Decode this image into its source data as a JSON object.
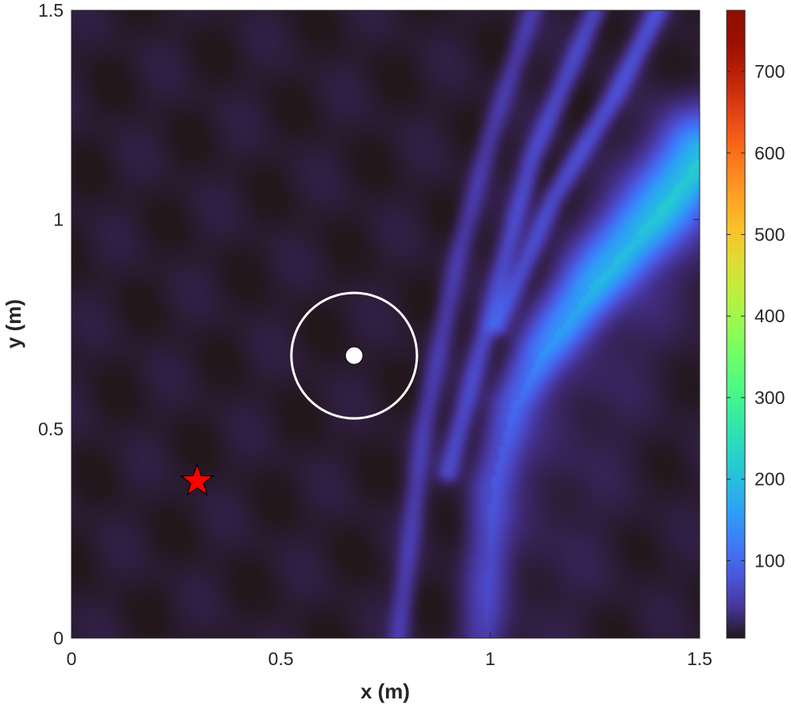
{
  "chart_data": {
    "type": "heatmap",
    "title": "",
    "xlabel": "x (m)",
    "ylabel": "y (m)",
    "xlim": [
      0,
      1.5
    ],
    "ylim": [
      0,
      1.5
    ],
    "x_ticks": [
      0,
      0.5,
      1,
      1.5
    ],
    "x_tick_labels": [
      "0",
      "0.5",
      "1",
      "1.5"
    ],
    "y_ticks": [
      0,
      0.5,
      1,
      1.5
    ],
    "y_tick_labels": [
      "0",
      "0.5",
      "1",
      "1.5"
    ],
    "grid": false,
    "colormap": "turbo",
    "colorbar": {
      "range": [
        5,
        775
      ],
      "ticks": [
        100,
        200,
        300,
        400,
        500,
        600,
        700
      ],
      "tick_labels": [
        "100",
        "200",
        "300",
        "400",
        "500",
        "600",
        "700"
      ],
      "location": "right"
    },
    "field": {
      "background_value": 10,
      "main_beam": {
        "peak_value": 185,
        "path": [
          [
            0.98,
            0.0
          ],
          [
            1.0,
            0.35
          ],
          [
            1.05,
            0.55
          ],
          [
            1.12,
            0.68
          ],
          [
            1.25,
            0.85
          ],
          [
            1.38,
            1.0
          ],
          [
            1.5,
            1.15
          ]
        ],
        "path_peak_values": [
          40,
          55,
          70,
          110,
          160,
          180,
          185
        ]
      },
      "secondary_streaks": [
        {
          "path": [
            [
              0.78,
              0.0
            ],
            [
              0.84,
              0.5
            ],
            [
              0.92,
              0.9
            ],
            [
              1.0,
              1.2
            ],
            [
              1.1,
              1.5
            ]
          ],
          "value": 40
        },
        {
          "path": [
            [
              0.9,
              0.4
            ],
            [
              1.02,
              0.85
            ],
            [
              1.1,
              1.15
            ],
            [
              1.25,
              1.5
            ]
          ],
          "value": 55
        },
        {
          "path": [
            [
              1.02,
              0.75
            ],
            [
              1.15,
              1.05
            ],
            [
              1.3,
              1.3
            ],
            [
              1.4,
              1.5
            ]
          ],
          "value": 60
        }
      ]
    },
    "markers": [
      {
        "type": "circle-outline",
        "center": [
          0.675,
          0.675
        ],
        "radius": 0.15,
        "color": "#ffffff"
      },
      {
        "type": "dot",
        "position": [
          0.675,
          0.675
        ],
        "color": "#ffffff"
      },
      {
        "type": "star",
        "position": [
          0.3,
          0.375
        ],
        "color": "#ff0000"
      }
    ]
  }
}
